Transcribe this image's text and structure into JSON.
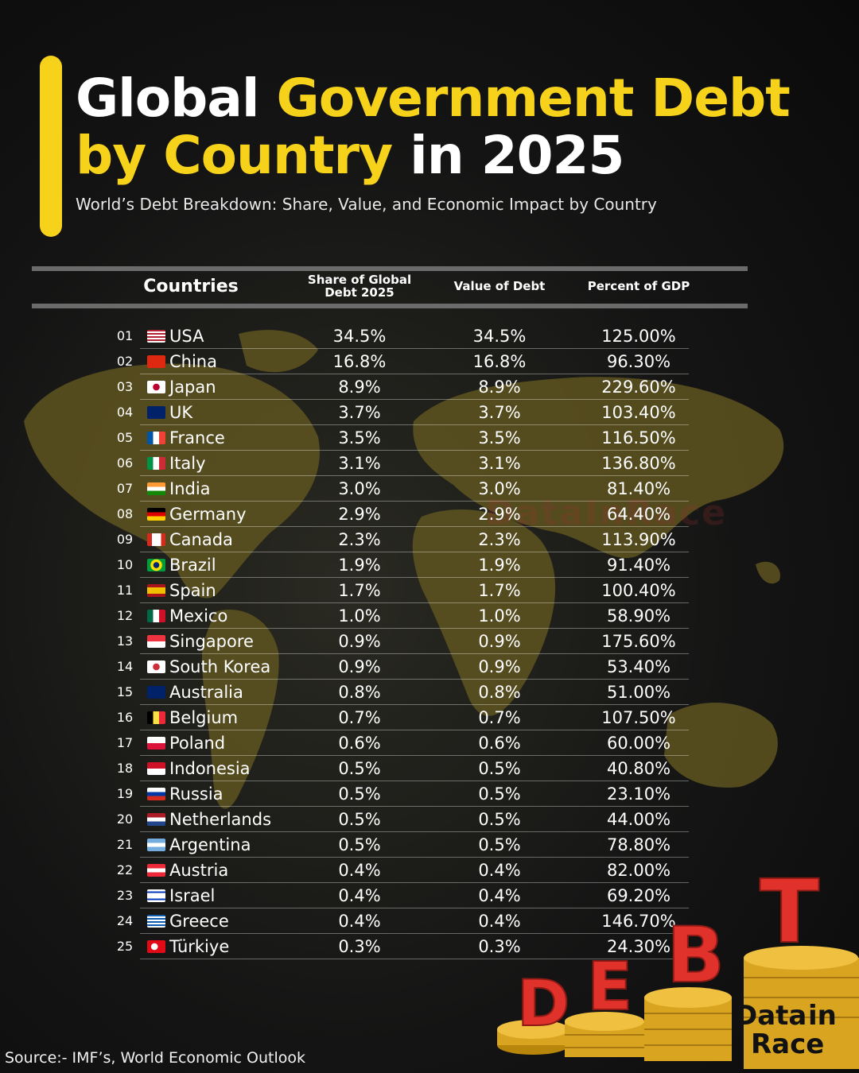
{
  "header": {
    "title_part1": "Global ",
    "title_part2": "Government Debt",
    "title_part3": "by Country",
    "title_part4": " in 2025",
    "subtitle": "World’s Debt Breakdown: Share, Value, and Economic Impact by Country"
  },
  "table": {
    "headers": {
      "countries": "Countries",
      "share_line1": "Share of Global",
      "share_line2": "Debt 2025",
      "value": "Value of Debt",
      "gdp": "Percent of GDP"
    }
  },
  "chart_data": {
    "type": "table",
    "title": "Global Government Debt by Country in 2025",
    "columns": [
      "Countries",
      "Share of Global Debt 2025",
      "Value of Debt",
      "Percent of GDP"
    ],
    "rows": [
      {
        "rank": "01",
        "country": "USA",
        "flag": "us-flag",
        "share": "34.5%",
        "value": "34.5%",
        "gdp": "125.00%"
      },
      {
        "rank": "02",
        "country": "China",
        "flag": "cn-flag",
        "share": "16.8%",
        "value": "16.8%",
        "gdp": "96.30%"
      },
      {
        "rank": "03",
        "country": "Japan",
        "flag": "jp-flag",
        "share": "8.9%",
        "value": "8.9%",
        "gdp": "229.60%"
      },
      {
        "rank": "04",
        "country": "UK",
        "flag": "gb-flag",
        "share": "3.7%",
        "value": "3.7%",
        "gdp": "103.40%"
      },
      {
        "rank": "05",
        "country": "France",
        "flag": "fr-flag",
        "share": "3.5%",
        "value": "3.5%",
        "gdp": "116.50%"
      },
      {
        "rank": "06",
        "country": "Italy",
        "flag": "it-flag",
        "share": "3.1%",
        "value": "3.1%",
        "gdp": "136.80%"
      },
      {
        "rank": "07",
        "country": "India",
        "flag": "in-flag",
        "share": "3.0%",
        "value": "3.0%",
        "gdp": "81.40%"
      },
      {
        "rank": "08",
        "country": "Germany",
        "flag": "de-flag",
        "share": "2.9%",
        "value": "2.9%",
        "gdp": "64.40%"
      },
      {
        "rank": "09",
        "country": "Canada",
        "flag": "ca-flag",
        "share": "2.3%",
        "value": "2.3%",
        "gdp": "113.90%"
      },
      {
        "rank": "10",
        "country": "Brazil",
        "flag": "br-flag",
        "share": "1.9%",
        "value": "1.9%",
        "gdp": "91.40%"
      },
      {
        "rank": "11",
        "country": "Spain",
        "flag": "es-flag",
        "share": "1.7%",
        "value": "1.7%",
        "gdp": "100.40%"
      },
      {
        "rank": "12",
        "country": "Mexico",
        "flag": "mx-flag",
        "share": "1.0%",
        "value": "1.0%",
        "gdp": "58.90%"
      },
      {
        "rank": "13",
        "country": "Singapore",
        "flag": "sg-flag",
        "share": "0.9%",
        "value": "0.9%",
        "gdp": "175.60%"
      },
      {
        "rank": "14",
        "country": "South Korea",
        "flag": "kr-flag",
        "share": "0.9%",
        "value": "0.9%",
        "gdp": "53.40%"
      },
      {
        "rank": "15",
        "country": "Australia",
        "flag": "au-flag",
        "share": "0.8%",
        "value": "0.8%",
        "gdp": "51.00%"
      },
      {
        "rank": "16",
        "country": "Belgium",
        "flag": "be-flag",
        "share": "0.7%",
        "value": "0.7%",
        "gdp": "107.50%"
      },
      {
        "rank": "17",
        "country": "Poland",
        "flag": "pl-flag",
        "share": "0.6%",
        "value": "0.6%",
        "gdp": "60.00%"
      },
      {
        "rank": "18",
        "country": "Indonesia",
        "flag": "id-flag",
        "share": "0.5%",
        "value": "0.5%",
        "gdp": "40.80%"
      },
      {
        "rank": "19",
        "country": "Russia",
        "flag": "ru-flag",
        "share": "0.5%",
        "value": "0.5%",
        "gdp": "23.10%"
      },
      {
        "rank": "20",
        "country": "Netherlands",
        "flag": "nl-flag",
        "share": "0.5%",
        "value": "0.5%",
        "gdp": "44.00%"
      },
      {
        "rank": "21",
        "country": "Argentina",
        "flag": "ar-flag",
        "share": "0.5%",
        "value": "0.5%",
        "gdp": "78.80%"
      },
      {
        "rank": "22",
        "country": "Austria",
        "flag": "at-flag",
        "share": "0.4%",
        "value": "0.4%",
        "gdp": "82.00%"
      },
      {
        "rank": "23",
        "country": "Israel",
        "flag": "il-flag",
        "share": "0.4%",
        "value": "0.4%",
        "gdp": "69.20%"
      },
      {
        "rank": "24",
        "country": "Greece",
        "flag": "gr-flag",
        "share": "0.4%",
        "value": "0.4%",
        "gdp": "146.70%"
      },
      {
        "rank": "25",
        "country": "Türkiye",
        "flag": "tr-flag",
        "share": "0.3%",
        "value": "0.3%",
        "gdp": "24.30%"
      }
    ]
  },
  "watermark": "DataInRace",
  "source": "Source:- IMF’s, World Economic Outlook",
  "debt_art": {
    "letters": [
      "D",
      "E",
      "B",
      "T"
    ]
  },
  "logo": {
    "line1a": "Data",
    "line1b": "in",
    "line2": "Race"
  },
  "colors": {
    "accent": "#f7d21b",
    "background": "#141414",
    "debt_red": "#e0322a",
    "coin_gold": "#d9a520"
  }
}
